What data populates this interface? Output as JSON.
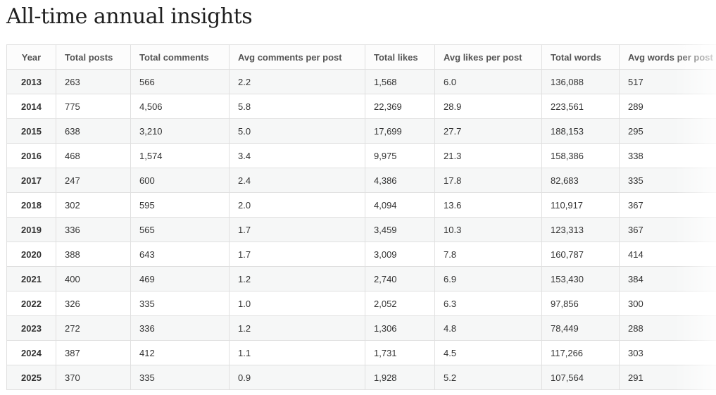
{
  "header": {
    "title": "All-time annual insights"
  },
  "table": {
    "columns": [
      "Year",
      "Total posts",
      "Total comments",
      "Avg comments per post",
      "Total likes",
      "Avg likes per post",
      "Total words",
      "Avg words per post"
    ],
    "rows": [
      [
        "2013",
        "263",
        "566",
        "2.2",
        "1,568",
        "6.0",
        "136,088",
        "517"
      ],
      [
        "2014",
        "775",
        "4,506",
        "5.8",
        "22,369",
        "28.9",
        "223,561",
        "289"
      ],
      [
        "2015",
        "638",
        "3,210",
        "5.0",
        "17,699",
        "27.7",
        "188,153",
        "295"
      ],
      [
        "2016",
        "468",
        "1,574",
        "3.4",
        "9,975",
        "21.3",
        "158,386",
        "338"
      ],
      [
        "2017",
        "247",
        "600",
        "2.4",
        "4,386",
        "17.8",
        "82,683",
        "335"
      ],
      [
        "2018",
        "302",
        "595",
        "2.0",
        "4,094",
        "13.6",
        "110,917",
        "367"
      ],
      [
        "2019",
        "336",
        "565",
        "1.7",
        "3,459",
        "10.3",
        "123,313",
        "367"
      ],
      [
        "2020",
        "388",
        "643",
        "1.7",
        "3,009",
        "7.8",
        "160,787",
        "414"
      ],
      [
        "2021",
        "400",
        "469",
        "1.2",
        "2,740",
        "6.9",
        "153,430",
        "384"
      ],
      [
        "2022",
        "326",
        "335",
        "1.0",
        "2,052",
        "6.3",
        "97,856",
        "300"
      ],
      [
        "2023",
        "272",
        "336",
        "1.2",
        "1,306",
        "4.8",
        "78,449",
        "288"
      ],
      [
        "2024",
        "387",
        "412",
        "1.1",
        "1,731",
        "4.5",
        "117,266",
        "303"
      ],
      [
        "2025",
        "370",
        "335",
        "0.9",
        "1,928",
        "5.2",
        "107,564",
        "291"
      ]
    ]
  }
}
